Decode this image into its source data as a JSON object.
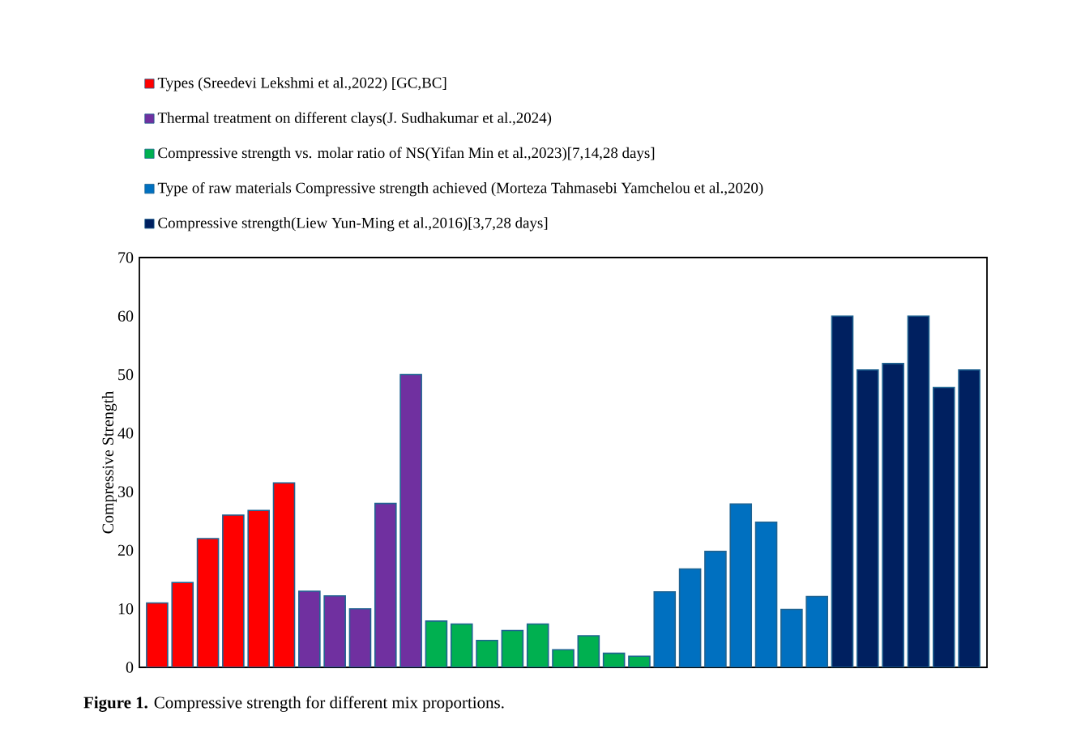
{
  "chart_data": {
    "type": "bar",
    "ylabel": "Compressive Strength",
    "annotations": [
      "**Figure 1.** Compressive strength for different mix proportions."
    ],
    "categories": [
      null,
      null,
      null,
      null,
      null,
      null,
      null,
      null,
      null,
      null,
      null,
      null,
      null,
      null,
      null,
      null,
      null,
      null,
      null,
      null,
      null,
      null,
      null,
      null,
      null,
      null,
      null,
      null,
      null,
      null,
      null,
      null,
      null
    ],
    "ylim": [
      0,
      70
    ],
    "yticks": [
      0,
      10,
      20,
      30,
      40,
      50,
      60,
      70
    ],
    "tick_labels": "y",
    "legend": "top",
    "grid": false,
    "stacked": true,
    "series": [
      {
        "name": "Types (Sreedevi Lekshmi et al.,2022) [GC,BC]",
        "color": "#ff0000",
        "values": [
          11,
          14.5,
          22,
          26,
          26.8,
          31.5,
          null,
          null,
          null,
          null,
          null,
          null,
          null,
          null,
          null,
          null,
          null,
          null,
          null,
          null,
          null,
          null,
          null,
          null,
          null,
          null,
          null,
          null,
          null,
          null,
          null,
          null,
          null
        ]
      },
      {
        "name": "Thermal treatment on different clays(J. Sudhakumar et al.,2024)",
        "color": "#7030a0",
        "values": [
          null,
          null,
          null,
          null,
          null,
          null,
          13,
          12.2,
          10,
          28,
          50,
          null,
          null,
          null,
          null,
          null,
          null,
          null,
          null,
          null,
          null,
          null,
          null,
          null,
          null,
          null,
          null,
          null,
          null,
          null,
          null,
          null,
          null
        ]
      },
      {
        "name": "Compressive strength vs. molar ratio of NS(Yifan Min et al.,2023)[7,14,28 days]",
        "color": "#00b050",
        "values": [
          null,
          null,
          null,
          null,
          null,
          null,
          null,
          null,
          null,
          null,
          null,
          7.9,
          7.4,
          4.6,
          6.3,
          7.4,
          3,
          5.4,
          2.4,
          1.9,
          null,
          null,
          null,
          null,
          null,
          null,
          null,
          null,
          null,
          null,
          null,
          null,
          null
        ]
      },
      {
        "name": "Type of raw materials Compressive strength achieved (Morteza Tahmasebi Yamchelou et al.,2020)",
        "color": "#0070c0",
        "values": [
          null,
          null,
          null,
          null,
          null,
          null,
          null,
          null,
          null,
          null,
          null,
          null,
          null,
          null,
          null,
          null,
          null,
          null,
          null,
          null,
          12.9,
          16.8,
          19.8,
          27.9,
          24.8,
          9.9,
          12.1,
          null,
          null,
          null,
          null,
          null,
          null
        ]
      },
      {
        "name": "Compressive strength(Liew Yun-Ming et al.,2016)[3,7,28 days]",
        "color": "#002060",
        "values": [
          null,
          null,
          null,
          null,
          null,
          null,
          null,
          null,
          null,
          null,
          null,
          null,
          null,
          null,
          null,
          null,
          null,
          null,
          null,
          null,
          null,
          null,
          null,
          null,
          null,
          null,
          null,
          60,
          50.8,
          51.9,
          60,
          47.8,
          50.8
        ]
      }
    ]
  }
}
